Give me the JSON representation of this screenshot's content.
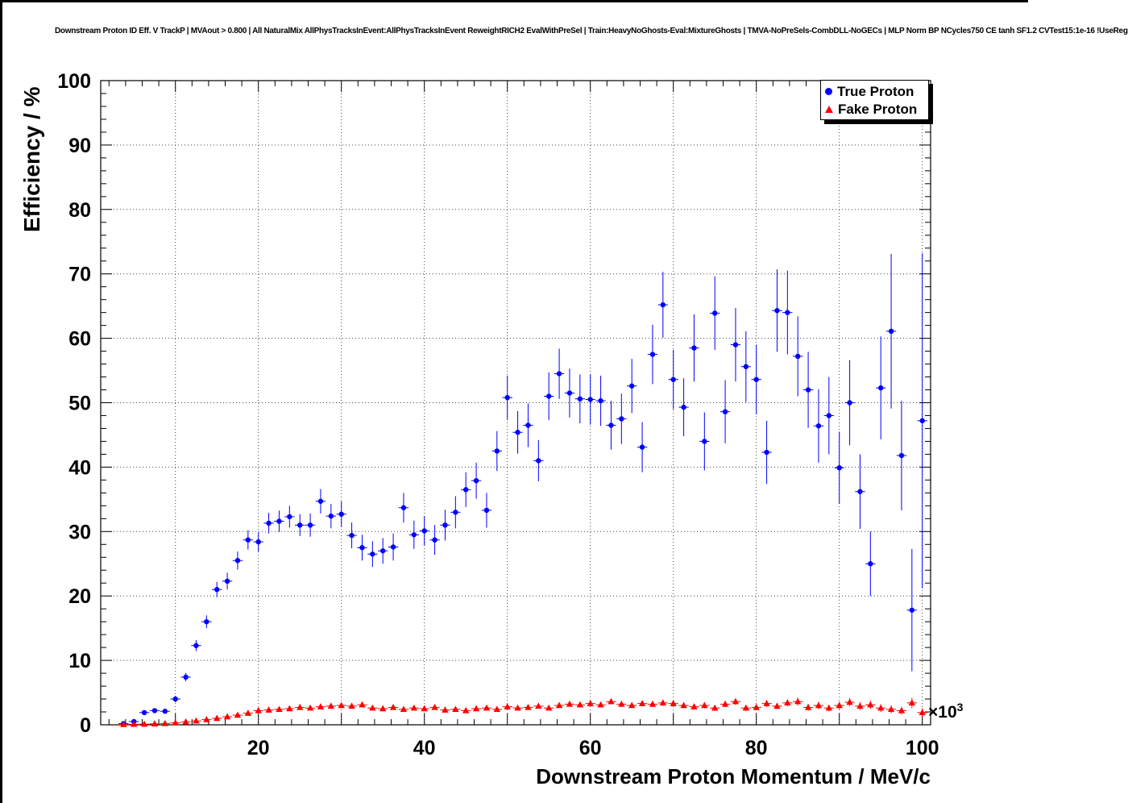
{
  "chart_data": {
    "type": "scatter",
    "title": "Downstream Proton ID Eff. V TrackP | MVAout > 0.800 | All NaturalMix AllPhysTracksInEvent:AllPhysTracksInEvent ReweightRICH2 EvalWithPreSel | Train:HeavyNoGhosts-Eval:MixtureGhosts | TMVA-NoPreSels-CombDLL-NoGECs | MLP Norm BP NCycles750 CE tanh SF1.2 CVTest15:1e-16 !UseReg",
    "xlabel": "Downstream Proton Momentum / MeV/c",
    "ylabel": "Efficiency / %",
    "x_exponent": {
      "base": "×10",
      "sup": "3"
    },
    "x_units": "10^3 MeV/c",
    "xlim": [
      1,
      101
    ],
    "ylim": [
      0,
      100
    ],
    "x_ticks": [
      20,
      40,
      60,
      80,
      100
    ],
    "y_ticks": [
      0,
      10,
      20,
      30,
      40,
      50,
      60,
      70,
      80,
      90,
      100
    ],
    "x_grid": [
      10,
      20,
      30,
      40,
      50,
      60,
      70,
      80,
      90,
      100
    ],
    "y_grid": [
      10,
      20,
      30,
      40,
      50,
      60,
      70,
      80,
      90
    ],
    "grid": true,
    "grid_style": "dotted",
    "legend": {
      "position": "top-right",
      "entries": [
        {
          "label": "True Proton",
          "color": "#0000ff",
          "marker": "circle"
        },
        {
          "label": "Fake Proton",
          "color": "#ff0000",
          "marker": "triangle"
        }
      ]
    },
    "series": [
      {
        "name": "True Proton",
        "color": "#0000ff",
        "marker": "circle",
        "xerr": 0.6,
        "points": [
          [
            3.75,
            0.2,
            0.15
          ],
          [
            5.0,
            0.5,
            0.2
          ],
          [
            6.25,
            1.9,
            0.3
          ],
          [
            7.5,
            2.2,
            0.35
          ],
          [
            8.75,
            2.1,
            0.35
          ],
          [
            10.0,
            4.0,
            0.5
          ],
          [
            11.25,
            7.4,
            0.65
          ],
          [
            12.5,
            12.3,
            0.85
          ],
          [
            13.75,
            16.0,
            1.0
          ],
          [
            15.0,
            21.0,
            1.2
          ],
          [
            16.25,
            22.3,
            1.3
          ],
          [
            17.5,
            25.5,
            1.4
          ],
          [
            18.75,
            28.7,
            1.5
          ],
          [
            20.0,
            28.4,
            1.5
          ],
          [
            21.25,
            31.3,
            1.6
          ],
          [
            22.5,
            31.6,
            1.65
          ],
          [
            23.75,
            32.3,
            1.7
          ],
          [
            25.0,
            31.0,
            1.7
          ],
          [
            26.25,
            31.0,
            1.8
          ],
          [
            27.5,
            34.7,
            1.9
          ],
          [
            28.75,
            32.4,
            1.9
          ],
          [
            30.0,
            32.7,
            2.0
          ],
          [
            31.25,
            29.4,
            2.0
          ],
          [
            32.5,
            27.5,
            2.0
          ],
          [
            33.75,
            26.5,
            2.0
          ],
          [
            35.0,
            27.0,
            2.0
          ],
          [
            36.25,
            27.6,
            2.1
          ],
          [
            37.5,
            33.7,
            2.3
          ],
          [
            38.75,
            29.5,
            2.2
          ],
          [
            40.0,
            30.1,
            2.3
          ],
          [
            41.25,
            28.7,
            2.3
          ],
          [
            42.5,
            31.0,
            2.4
          ],
          [
            43.75,
            33.0,
            2.5
          ],
          [
            45.0,
            36.5,
            2.7
          ],
          [
            46.25,
            37.9,
            2.8
          ],
          [
            47.5,
            33.3,
            2.7
          ],
          [
            48.75,
            42.5,
            3.1
          ],
          [
            50.0,
            50.8,
            3.4
          ],
          [
            51.25,
            45.4,
            3.3
          ],
          [
            52.5,
            46.5,
            3.4
          ],
          [
            53.75,
            41.0,
            3.2
          ],
          [
            55.0,
            51.0,
            3.7
          ],
          [
            56.25,
            54.5,
            3.9
          ],
          [
            57.5,
            51.5,
            3.8
          ],
          [
            58.75,
            50.6,
            3.8
          ],
          [
            60.0,
            50.5,
            3.9
          ],
          [
            61.25,
            50.3,
            3.9
          ],
          [
            62.5,
            46.5,
            3.8
          ],
          [
            63.75,
            47.5,
            3.9
          ],
          [
            65.0,
            52.6,
            4.2
          ],
          [
            66.25,
            43.1,
            3.9
          ],
          [
            67.5,
            57.5,
            4.6
          ],
          [
            68.75,
            65.2,
            5.1
          ],
          [
            70.0,
            53.6,
            4.6
          ],
          [
            71.25,
            49.3,
            4.5
          ],
          [
            72.5,
            58.5,
            5.2
          ],
          [
            73.75,
            44.0,
            4.5
          ],
          [
            75.0,
            63.9,
            5.7
          ],
          [
            76.25,
            48.6,
            4.9
          ],
          [
            77.5,
            59.0,
            5.7
          ],
          [
            78.75,
            55.6,
            5.5
          ],
          [
            80.0,
            53.6,
            5.4
          ],
          [
            81.25,
            42.3,
            4.9
          ],
          [
            82.5,
            64.3,
            6.4
          ],
          [
            83.75,
            64.0,
            6.5
          ],
          [
            85.0,
            57.2,
            6.2
          ],
          [
            86.25,
            52.0,
            5.9
          ],
          [
            87.5,
            46.4,
            5.7
          ],
          [
            88.75,
            48.0,
            6.0
          ],
          [
            90.0,
            39.9,
            5.6
          ],
          [
            91.25,
            50.0,
            6.6
          ],
          [
            92.5,
            36.2,
            5.8
          ],
          [
            93.75,
            25.0,
            5.0
          ],
          [
            95.0,
            52.3,
            8.0
          ],
          [
            96.25,
            61.1,
            12.0
          ],
          [
            97.5,
            41.8,
            8.5
          ],
          [
            98.75,
            17.8,
            9.5
          ],
          [
            100.0,
            47.2,
            26.0
          ]
        ]
      },
      {
        "name": "Fake Proton",
        "color": "#ff0000",
        "marker": "triangle",
        "xerr": 0.6,
        "points": [
          [
            3.75,
            0.05,
            0.03
          ],
          [
            5.0,
            0.08,
            0.03
          ],
          [
            6.25,
            0.1,
            0.04
          ],
          [
            7.5,
            0.15,
            0.05
          ],
          [
            8.75,
            0.2,
            0.05
          ],
          [
            10.0,
            0.3,
            0.07
          ],
          [
            11.25,
            0.45,
            0.08
          ],
          [
            12.5,
            0.6,
            0.1
          ],
          [
            13.75,
            0.8,
            0.12
          ],
          [
            15.0,
            1.0,
            0.14
          ],
          [
            16.25,
            1.25,
            0.16
          ],
          [
            17.5,
            1.5,
            0.18
          ],
          [
            18.75,
            1.8,
            0.2
          ],
          [
            20.0,
            2.2,
            0.22
          ],
          [
            21.25,
            2.3,
            0.23
          ],
          [
            22.5,
            2.4,
            0.24
          ],
          [
            23.75,
            2.5,
            0.25
          ],
          [
            25.0,
            2.7,
            0.26
          ],
          [
            26.25,
            2.6,
            0.26
          ],
          [
            27.5,
            2.8,
            0.27
          ],
          [
            28.75,
            2.9,
            0.28
          ],
          [
            30.0,
            3.0,
            0.29
          ],
          [
            31.25,
            2.9,
            0.29
          ],
          [
            32.5,
            3.1,
            0.3
          ],
          [
            33.75,
            2.6,
            0.28
          ],
          [
            35.0,
            2.5,
            0.28
          ],
          [
            36.25,
            2.7,
            0.3
          ],
          [
            37.5,
            2.4,
            0.28
          ],
          [
            38.75,
            2.6,
            0.3
          ],
          [
            40.0,
            2.5,
            0.3
          ],
          [
            41.25,
            2.7,
            0.31
          ],
          [
            42.5,
            2.3,
            0.3
          ],
          [
            43.75,
            2.4,
            0.31
          ],
          [
            45.0,
            2.2,
            0.3
          ],
          [
            46.25,
            2.5,
            0.32
          ],
          [
            47.5,
            2.6,
            0.33
          ],
          [
            48.75,
            2.4,
            0.32
          ],
          [
            50.0,
            2.8,
            0.35
          ],
          [
            51.25,
            2.6,
            0.34
          ],
          [
            52.5,
            2.7,
            0.35
          ],
          [
            53.75,
            2.9,
            0.36
          ],
          [
            55.0,
            2.6,
            0.35
          ],
          [
            56.25,
            3.0,
            0.38
          ],
          [
            57.5,
            3.2,
            0.39
          ],
          [
            58.75,
            3.1,
            0.39
          ],
          [
            60.0,
            3.3,
            0.41
          ],
          [
            61.25,
            3.1,
            0.4
          ],
          [
            62.5,
            3.6,
            0.44
          ],
          [
            63.75,
            3.2,
            0.42
          ],
          [
            65.0,
            3.0,
            0.42
          ],
          [
            66.25,
            3.3,
            0.44
          ],
          [
            67.5,
            3.2,
            0.44
          ],
          [
            68.75,
            3.4,
            0.46
          ],
          [
            70.0,
            3.3,
            0.46
          ],
          [
            71.25,
            3.0,
            0.44
          ],
          [
            72.5,
            2.8,
            0.44
          ],
          [
            73.75,
            3.0,
            0.46
          ],
          [
            75.0,
            2.6,
            0.43
          ],
          [
            76.25,
            3.2,
            0.49
          ],
          [
            77.5,
            3.6,
            0.52
          ],
          [
            78.75,
            2.6,
            0.46
          ],
          [
            80.0,
            2.7,
            0.48
          ],
          [
            81.25,
            3.3,
            0.53
          ],
          [
            82.5,
            2.9,
            0.51
          ],
          [
            83.75,
            3.4,
            0.56
          ],
          [
            85.0,
            3.6,
            0.59
          ],
          [
            86.25,
            2.7,
            0.52
          ],
          [
            87.5,
            3.0,
            0.55
          ],
          [
            88.75,
            2.6,
            0.53
          ],
          [
            90.0,
            3.0,
            0.59
          ],
          [
            91.25,
            3.5,
            0.65
          ],
          [
            92.5,
            2.9,
            0.61
          ],
          [
            93.75,
            3.1,
            0.65
          ],
          [
            95.0,
            2.6,
            0.61
          ],
          [
            96.25,
            2.4,
            0.61
          ],
          [
            97.5,
            2.2,
            0.59
          ],
          [
            98.75,
            3.4,
            0.79
          ],
          [
            100.0,
            1.9,
            0.69
          ]
        ]
      }
    ]
  }
}
